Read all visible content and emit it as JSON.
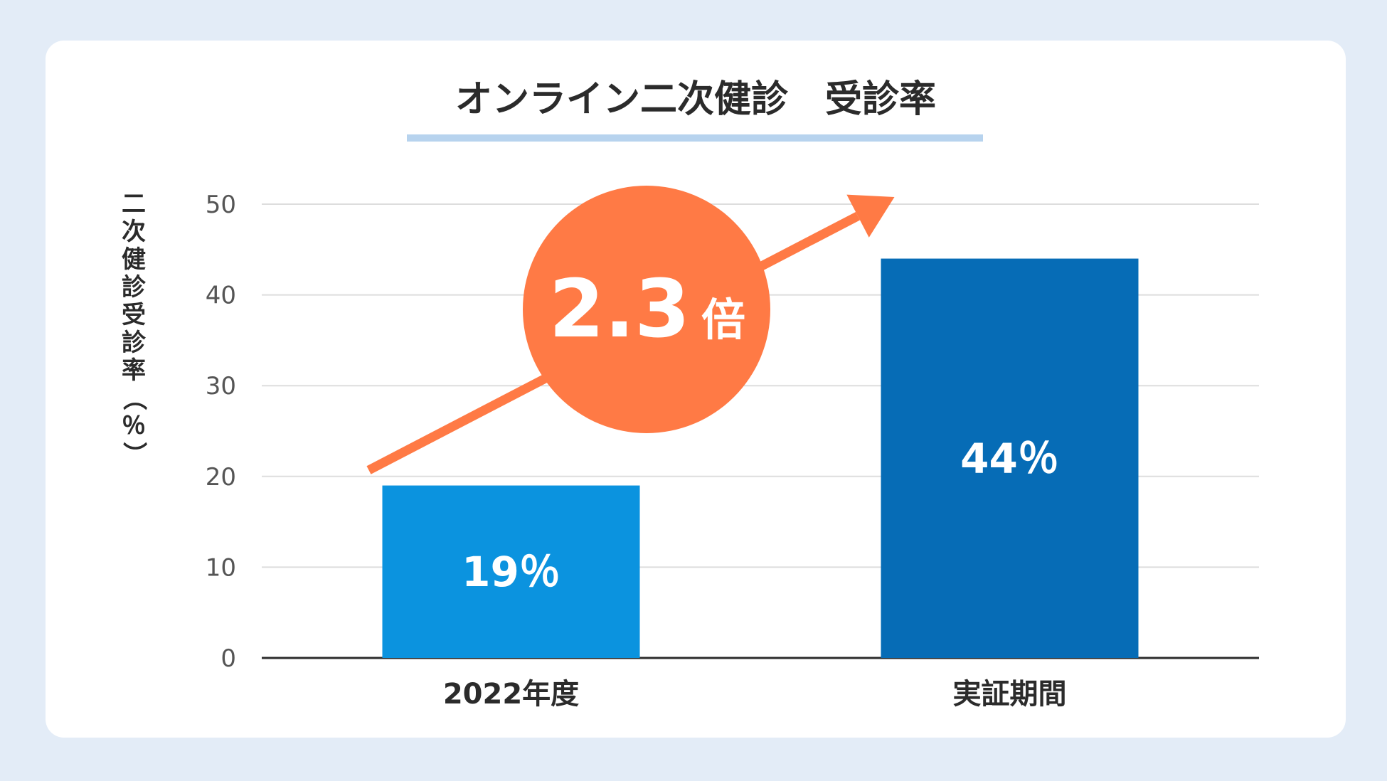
{
  "chart_data": {
    "type": "bar",
    "title": "オンライン二次健診　受診率",
    "ylabel": "二次健診受診率（％）",
    "xlabel": "",
    "categories": [
      "2022年度",
      "実証期間"
    ],
    "values": [
      19,
      44
    ],
    "data_labels": [
      "19％",
      "44％"
    ],
    "ylim": [
      0,
      50
    ],
    "yticks": [
      0,
      10,
      20,
      30,
      40,
      50
    ],
    "grid": true,
    "legend": "none",
    "annotation": {
      "multiplier": "2.3",
      "unit": "倍"
    }
  },
  "colors": {
    "background": "#e3ecf7",
    "card": "#ffffff",
    "bars": [
      "#0b93df",
      "#066cb6"
    ],
    "annotation": "#ff7a45",
    "title_underline": "#b7d3ee",
    "grid": "#dddddd",
    "axis": "#2b2b2b"
  }
}
